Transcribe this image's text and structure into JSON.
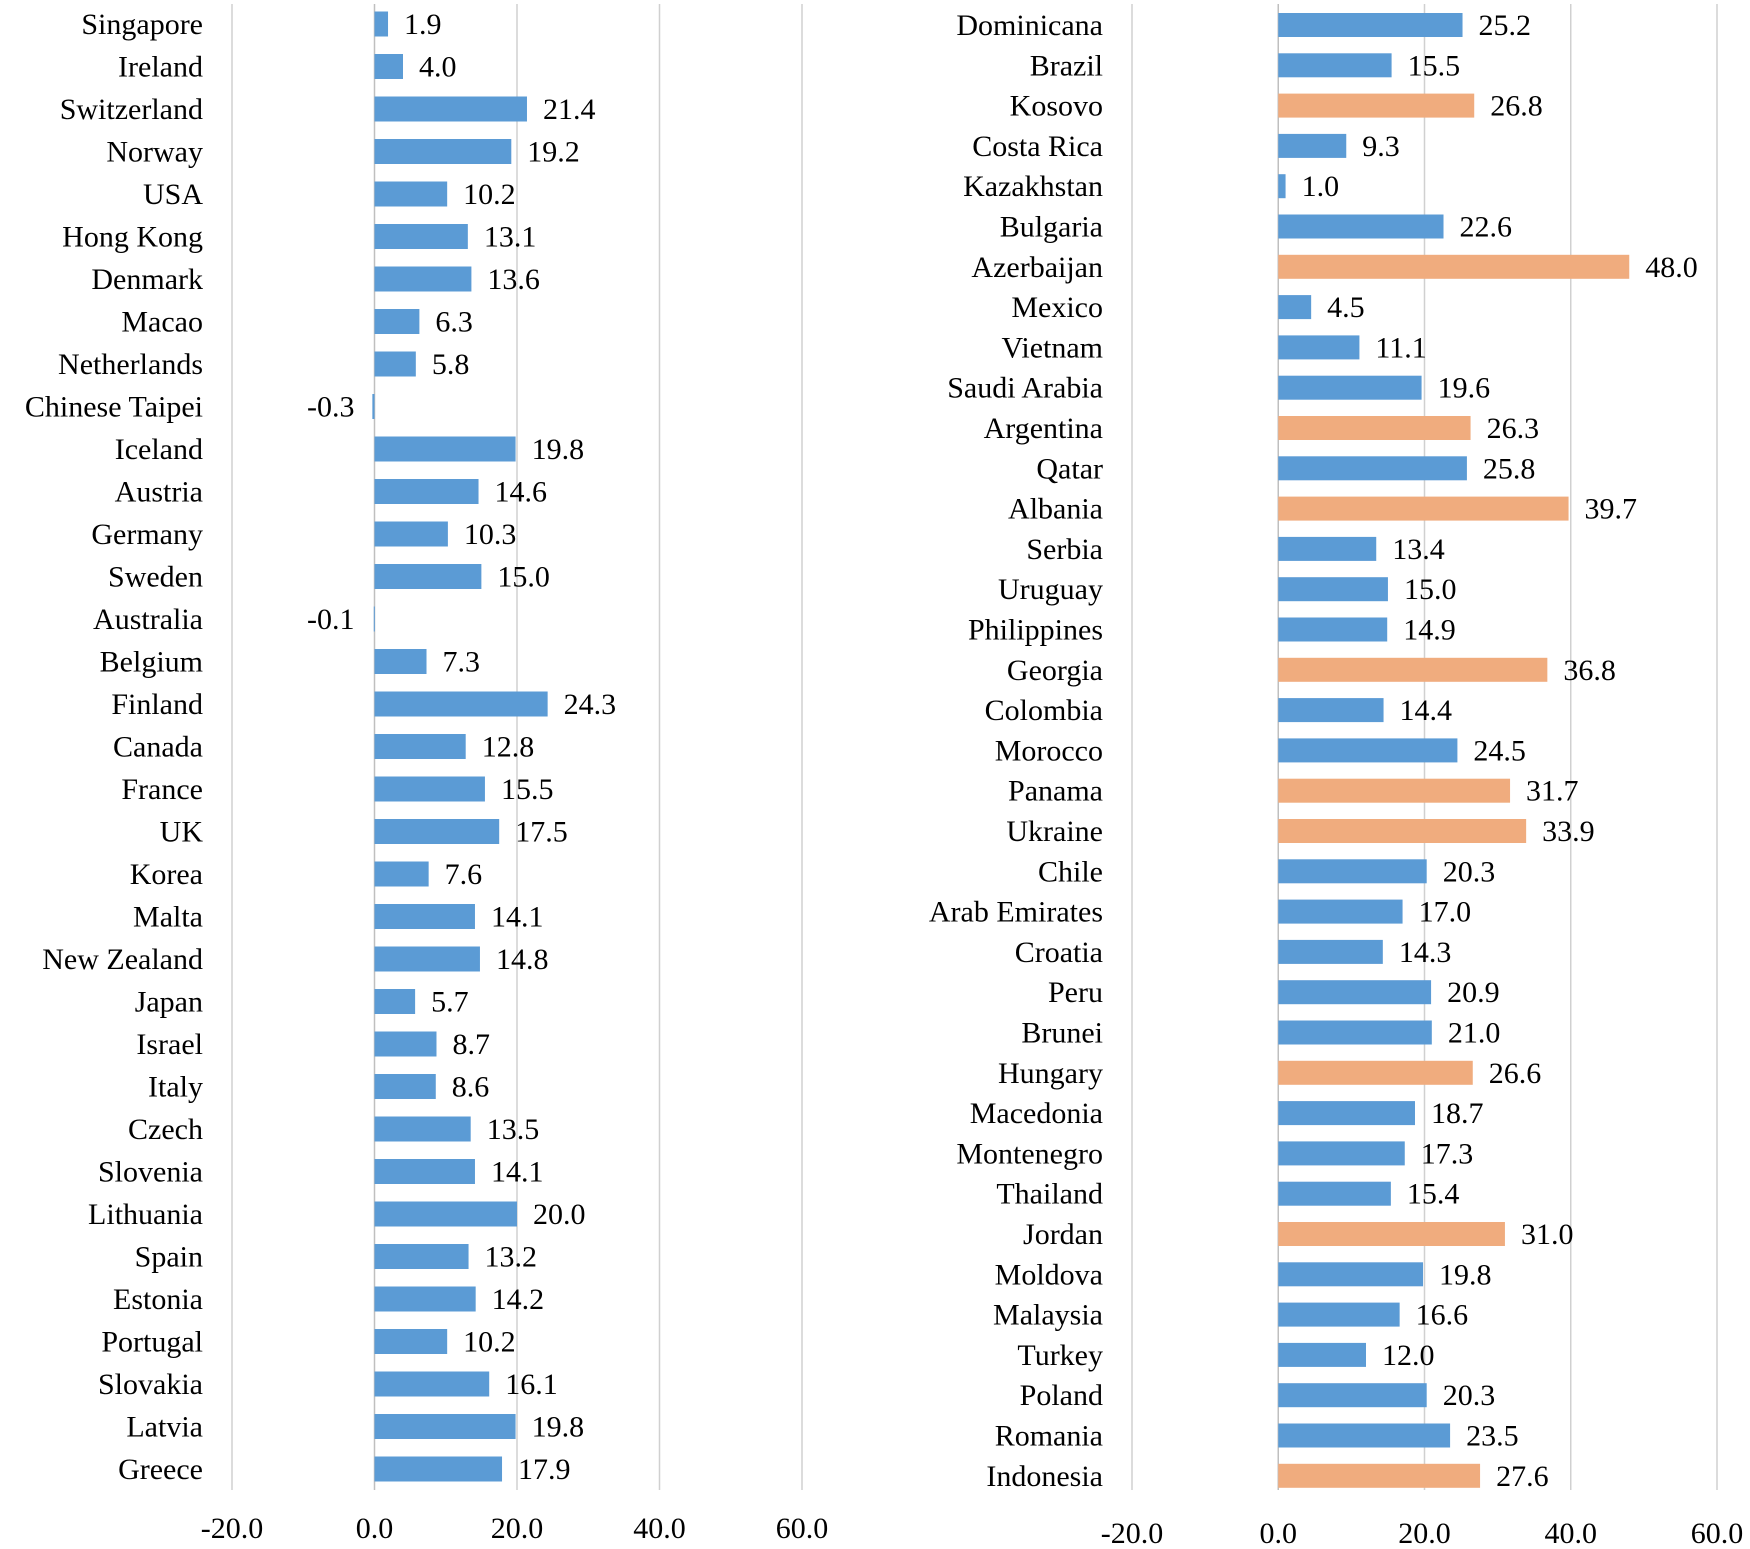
{
  "colors": {
    "default": "#5b9bd5",
    "highlight": "#f0ac7e",
    "grid": "#d0d0d0"
  },
  "chart_data": [
    {
      "type": "bar",
      "orientation": "horizontal",
      "title": "",
      "xlabel": "",
      "ylabel": "",
      "xlim": [
        -20,
        60
      ],
      "grid": true,
      "legend": "none",
      "x_ticks": [
        "-20.0",
        "0.0",
        "20.0",
        "40.0",
        "60.0"
      ],
      "categories": [
        "Singapore",
        "Ireland",
        "Switzerland",
        "Norway",
        "USA",
        "Hong Kong",
        "Denmark",
        "Macao",
        "Netherlands",
        "Chinese Taipei",
        "Iceland",
        "Austria",
        "Germany",
        "Sweden",
        "Australia",
        "Belgium",
        "Finland",
        "Canada",
        "France",
        "UK",
        "Korea",
        "Malta",
        "New Zealand",
        "Japan",
        "Israel",
        "Italy",
        "Czech",
        "Slovenia",
        "Lithuania",
        "Spain",
        "Estonia",
        "Portugal",
        "Slovakia",
        "Latvia",
        "Greece"
      ],
      "values": [
        1.9,
        4.0,
        21.4,
        19.2,
        10.2,
        13.1,
        13.6,
        6.3,
        5.8,
        -0.3,
        19.8,
        14.6,
        10.3,
        15.0,
        -0.1,
        7.3,
        24.3,
        12.8,
        15.5,
        17.5,
        7.6,
        14.1,
        14.8,
        5.7,
        8.7,
        8.6,
        13.5,
        14.1,
        20.0,
        13.2,
        14.2,
        10.2,
        16.1,
        19.8,
        17.9
      ],
      "labels": [
        "1.9",
        "4.0",
        "21.4",
        "19.2",
        "10.2",
        "13.1",
        "13.6",
        "6.3",
        "5.8",
        "-0.3",
        "19.8",
        "14.6",
        "10.3",
        "15.0",
        "-0.1",
        "7.3",
        "24.3",
        "12.8",
        "15.5",
        "17.5",
        "7.6",
        "14.1",
        "14.8",
        "5.7",
        "8.7",
        "8.6",
        "13.5",
        "14.1",
        "20.0",
        "13.2",
        "14.2",
        "10.2",
        "16.1",
        "19.8",
        "17.9"
      ],
      "highlighted": []
    },
    {
      "type": "bar",
      "orientation": "horizontal",
      "title": "",
      "xlabel": "",
      "ylabel": "",
      "xlim": [
        -20,
        60
      ],
      "grid": true,
      "legend": "none",
      "x_ticks": [
        "-20.0",
        "0.0",
        "20.0",
        "40.0",
        "60.0"
      ],
      "categories": [
        "Dominicana",
        "Brazil",
        "Kosovo",
        "Costa Rica",
        "Kazakhstan",
        "Bulgaria",
        "Azerbaijan",
        "Mexico",
        "Vietnam",
        "Saudi Arabia",
        "Argentina",
        "Qatar",
        "Albania",
        "Serbia",
        "Uruguay",
        "Philippines",
        "Georgia",
        "Colombia",
        "Morocco",
        "Panama",
        "Ukraine",
        "Chile",
        "Arab Emirates",
        "Croatia",
        "Peru",
        "Brunei",
        "Hungary",
        "Macedonia",
        "Montenegro",
        "Thailand",
        "Jordan",
        "Moldova",
        "Malaysia",
        "Turkey",
        "Poland",
        "Romania",
        "Indonesia"
      ],
      "values": [
        25.2,
        15.5,
        26.8,
        9.3,
        1.0,
        22.6,
        48.0,
        4.5,
        11.1,
        19.6,
        26.3,
        25.8,
        39.7,
        13.4,
        15.0,
        14.9,
        36.8,
        14.4,
        24.5,
        31.7,
        33.9,
        20.3,
        17.0,
        14.3,
        20.9,
        21.0,
        26.6,
        18.7,
        17.3,
        15.4,
        31.0,
        19.8,
        16.6,
        12.0,
        20.3,
        23.5,
        27.6
      ],
      "labels": [
        "25.2",
        "15.5",
        "26.8",
        "9.3",
        "1.0",
        "22.6",
        "48.0",
        "4.5",
        "11.1",
        "19.6",
        "26.3",
        "25.8",
        "39.7",
        "13.4",
        "15.0",
        "14.9",
        "36.8",
        "14.4",
        "24.5",
        "31.7",
        "33.9",
        "20.3",
        "17.0",
        "14.3",
        "20.9",
        "21.0",
        "26.6",
        "18.7",
        "17.3",
        "15.4",
        "31.0",
        "19.8",
        "16.6",
        "12.0",
        "20.3",
        "23.5",
        "27.6"
      ],
      "highlighted": [
        "Kosovo",
        "Azerbaijan",
        "Argentina",
        "Albania",
        "Georgia",
        "Panama",
        "Ukraine",
        "Hungary",
        "Jordan",
        "Indonesia"
      ]
    }
  ]
}
